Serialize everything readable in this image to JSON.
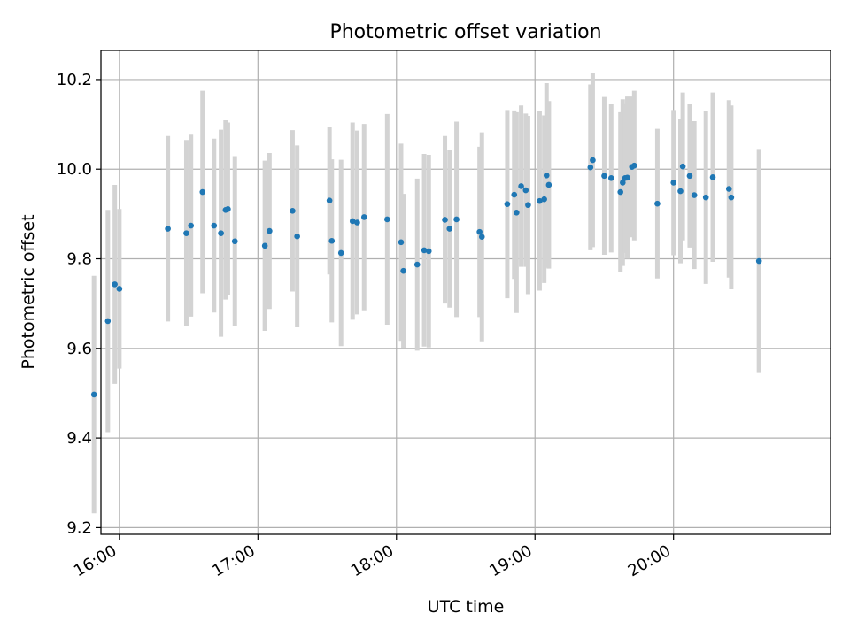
{
  "chart_data": {
    "type": "scatter",
    "title": "Photometric offset variation",
    "xlabel": "UTC time",
    "ylabel": "Photometric offset",
    "x_ticks": [
      "16:00",
      "17:00",
      "18:00",
      "19:00",
      "20:00"
    ],
    "y_ticks": [
      "9.2",
      "9.4",
      "9.6",
      "9.8",
      "10.0",
      "10.2"
    ],
    "xlim": [
      "15:52",
      "21:08"
    ],
    "ylim": [
      9.185,
      10.265
    ],
    "grid": true,
    "colors": {
      "point": "#1f77b4",
      "errorbar": "#d3d3d3",
      "grid": "#b0b0b0"
    },
    "points": [
      {
        "x": "15:49",
        "y": 9.497,
        "err": 0.265
      },
      {
        "x": "15:55",
        "y": 9.661,
        "err": 0.248
      },
      {
        "x": "15:58",
        "y": 9.743,
        "err": 0.222
      },
      {
        "x": "16:00",
        "y": 9.733,
        "err": 0.178
      },
      {
        "x": "16:21",
        "y": 9.867,
        "err": 0.207
      },
      {
        "x": "16:29",
        "y": 9.857,
        "err": 0.208
      },
      {
        "x": "16:31",
        "y": 9.874,
        "err": 0.203
      },
      {
        "x": "16:36",
        "y": 9.949,
        "err": 0.226
      },
      {
        "x": "16:41",
        "y": 9.874,
        "err": 0.194
      },
      {
        "x": "16:44",
        "y": 9.857,
        "err": 0.231
      },
      {
        "x": "16:46",
        "y": 9.909,
        "err": 0.2
      },
      {
        "x": "16:47",
        "y": 9.911,
        "err": 0.193
      },
      {
        "x": "16:50",
        "y": 9.839,
        "err": 0.19
      },
      {
        "x": "17:03",
        "y": 9.829,
        "err": 0.19
      },
      {
        "x": "17:05",
        "y": 9.862,
        "err": 0.174
      },
      {
        "x": "17:15",
        "y": 9.907,
        "err": 0.18
      },
      {
        "x": "17:17",
        "y": 9.85,
        "err": 0.203
      },
      {
        "x": "17:31",
        "y": 9.93,
        "err": 0.165
      },
      {
        "x": "17:32",
        "y": 9.84,
        "err": 0.182
      },
      {
        "x": "17:36",
        "y": 9.813,
        "err": 0.208
      },
      {
        "x": "17:41",
        "y": 9.884,
        "err": 0.22
      },
      {
        "x": "17:43",
        "y": 9.881,
        "err": 0.205
      },
      {
        "x": "17:46",
        "y": 9.893,
        "err": 0.208
      },
      {
        "x": "17:56",
        "y": 9.888,
        "err": 0.235
      },
      {
        "x": "18:02",
        "y": 9.837,
        "err": 0.22
      },
      {
        "x": "18:03",
        "y": 9.773,
        "err": 0.172
      },
      {
        "x": "18:09",
        "y": 9.787,
        "err": 0.192
      },
      {
        "x": "18:12",
        "y": 9.819,
        "err": 0.215
      },
      {
        "x": "18:14",
        "y": 9.817,
        "err": 0.215
      },
      {
        "x": "18:21",
        "y": 9.887,
        "err": 0.187
      },
      {
        "x": "18:23",
        "y": 9.867,
        "err": 0.176
      },
      {
        "x": "18:26",
        "y": 9.888,
        "err": 0.218
      },
      {
        "x": "18:36",
        "y": 9.86,
        "err": 0.19
      },
      {
        "x": "18:37",
        "y": 9.849,
        "err": 0.233
      },
      {
        "x": "18:48",
        "y": 9.922,
        "err": 0.21
      },
      {
        "x": "18:51",
        "y": 9.943,
        "err": 0.188
      },
      {
        "x": "18:52",
        "y": 9.903,
        "err": 0.224
      },
      {
        "x": "18:54",
        "y": 9.962,
        "err": 0.18
      },
      {
        "x": "18:56",
        "y": 9.953,
        "err": 0.171
      },
      {
        "x": "18:57",
        "y": 9.92,
        "err": 0.199
      },
      {
        "x": "19:02",
        "y": 9.929,
        "err": 0.2
      },
      {
        "x": "19:04",
        "y": 9.933,
        "err": 0.187
      },
      {
        "x": "19:05",
        "y": 9.986,
        "err": 0.206
      },
      {
        "x": "19:06",
        "y": 9.965,
        "err": 0.187
      },
      {
        "x": "19:24",
        "y": 10.004,
        "err": 0.185
      },
      {
        "x": "19:25",
        "y": 10.02,
        "err": 0.194
      },
      {
        "x": "19:30",
        "y": 9.985,
        "err": 0.176
      },
      {
        "x": "19:33",
        "y": 9.98,
        "err": 0.166
      },
      {
        "x": "19:37",
        "y": 9.949,
        "err": 0.178
      },
      {
        "x": "19:38",
        "y": 9.97,
        "err": 0.186
      },
      {
        "x": "19:39",
        "y": 9.98,
        "err": 0.167
      },
      {
        "x": "19:40",
        "y": 9.981,
        "err": 0.181
      },
      {
        "x": "19:42",
        "y": 10.005,
        "err": 0.157
      },
      {
        "x": "19:43",
        "y": 10.008,
        "err": 0.167
      },
      {
        "x": "19:53",
        "y": 9.923,
        "err": 0.167
      },
      {
        "x": "20:00",
        "y": 9.97,
        "err": 0.162
      },
      {
        "x": "20:03",
        "y": 9.951,
        "err": 0.161
      },
      {
        "x": "20:04",
        "y": 10.006,
        "err": 0.165
      },
      {
        "x": "20:07",
        "y": 9.985,
        "err": 0.16
      },
      {
        "x": "20:09",
        "y": 9.942,
        "err": 0.165
      },
      {
        "x": "20:14",
        "y": 9.937,
        "err": 0.193
      },
      {
        "x": "20:17",
        "y": 9.982,
        "err": 0.189
      },
      {
        "x": "20:24",
        "y": 9.956,
        "err": 0.198
      },
      {
        "x": "20:25",
        "y": 9.937,
        "err": 0.205
      },
      {
        "x": "20:37",
        "y": 9.795,
        "err": 0.25
      }
    ]
  }
}
